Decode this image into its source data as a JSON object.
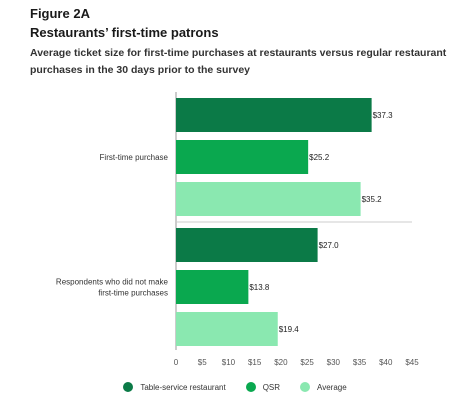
{
  "header": {
    "figure_label": "Figure 2A",
    "title": "Restaurants’ first-time patrons",
    "subtitle": "Average ticket size for first-time purchases at restaurants versus regular restaurant purchases in the 30 days prior to the survey"
  },
  "chart_data": {
    "type": "bar",
    "orientation": "horizontal",
    "categories": [
      "First-time purchase",
      "Respondents who did not make first-time purchases"
    ],
    "category_lines": [
      [
        "First-time purchase"
      ],
      [
        "Respondents who did not make",
        "first-time purchases"
      ]
    ],
    "series": [
      {
        "name": "Table-service restaurant",
        "color": "#0b7a47",
        "values": [
          37.3,
          27.0
        ],
        "labels": [
          "$37.3",
          "$27.0"
        ]
      },
      {
        "name": "QSR",
        "color": "#0aa84f",
        "values": [
          25.2,
          13.8
        ],
        "labels": [
          "$25.2",
          "$13.8"
        ]
      },
      {
        "name": "Average",
        "color": "#8ae8b0",
        "values": [
          35.2,
          19.4
        ],
        "labels": [
          "$35.2",
          "$19.4"
        ]
      }
    ],
    "xlim": [
      0,
      45
    ],
    "xticks": [
      0,
      5,
      10,
      15,
      20,
      25,
      30,
      35,
      40,
      45
    ],
    "xtick_labels": [
      "0",
      "$5",
      "$10",
      "$15",
      "$20",
      "$25",
      "$30",
      "$35",
      "$40",
      "$45"
    ],
    "grid": false,
    "legend_position": "bottom"
  }
}
